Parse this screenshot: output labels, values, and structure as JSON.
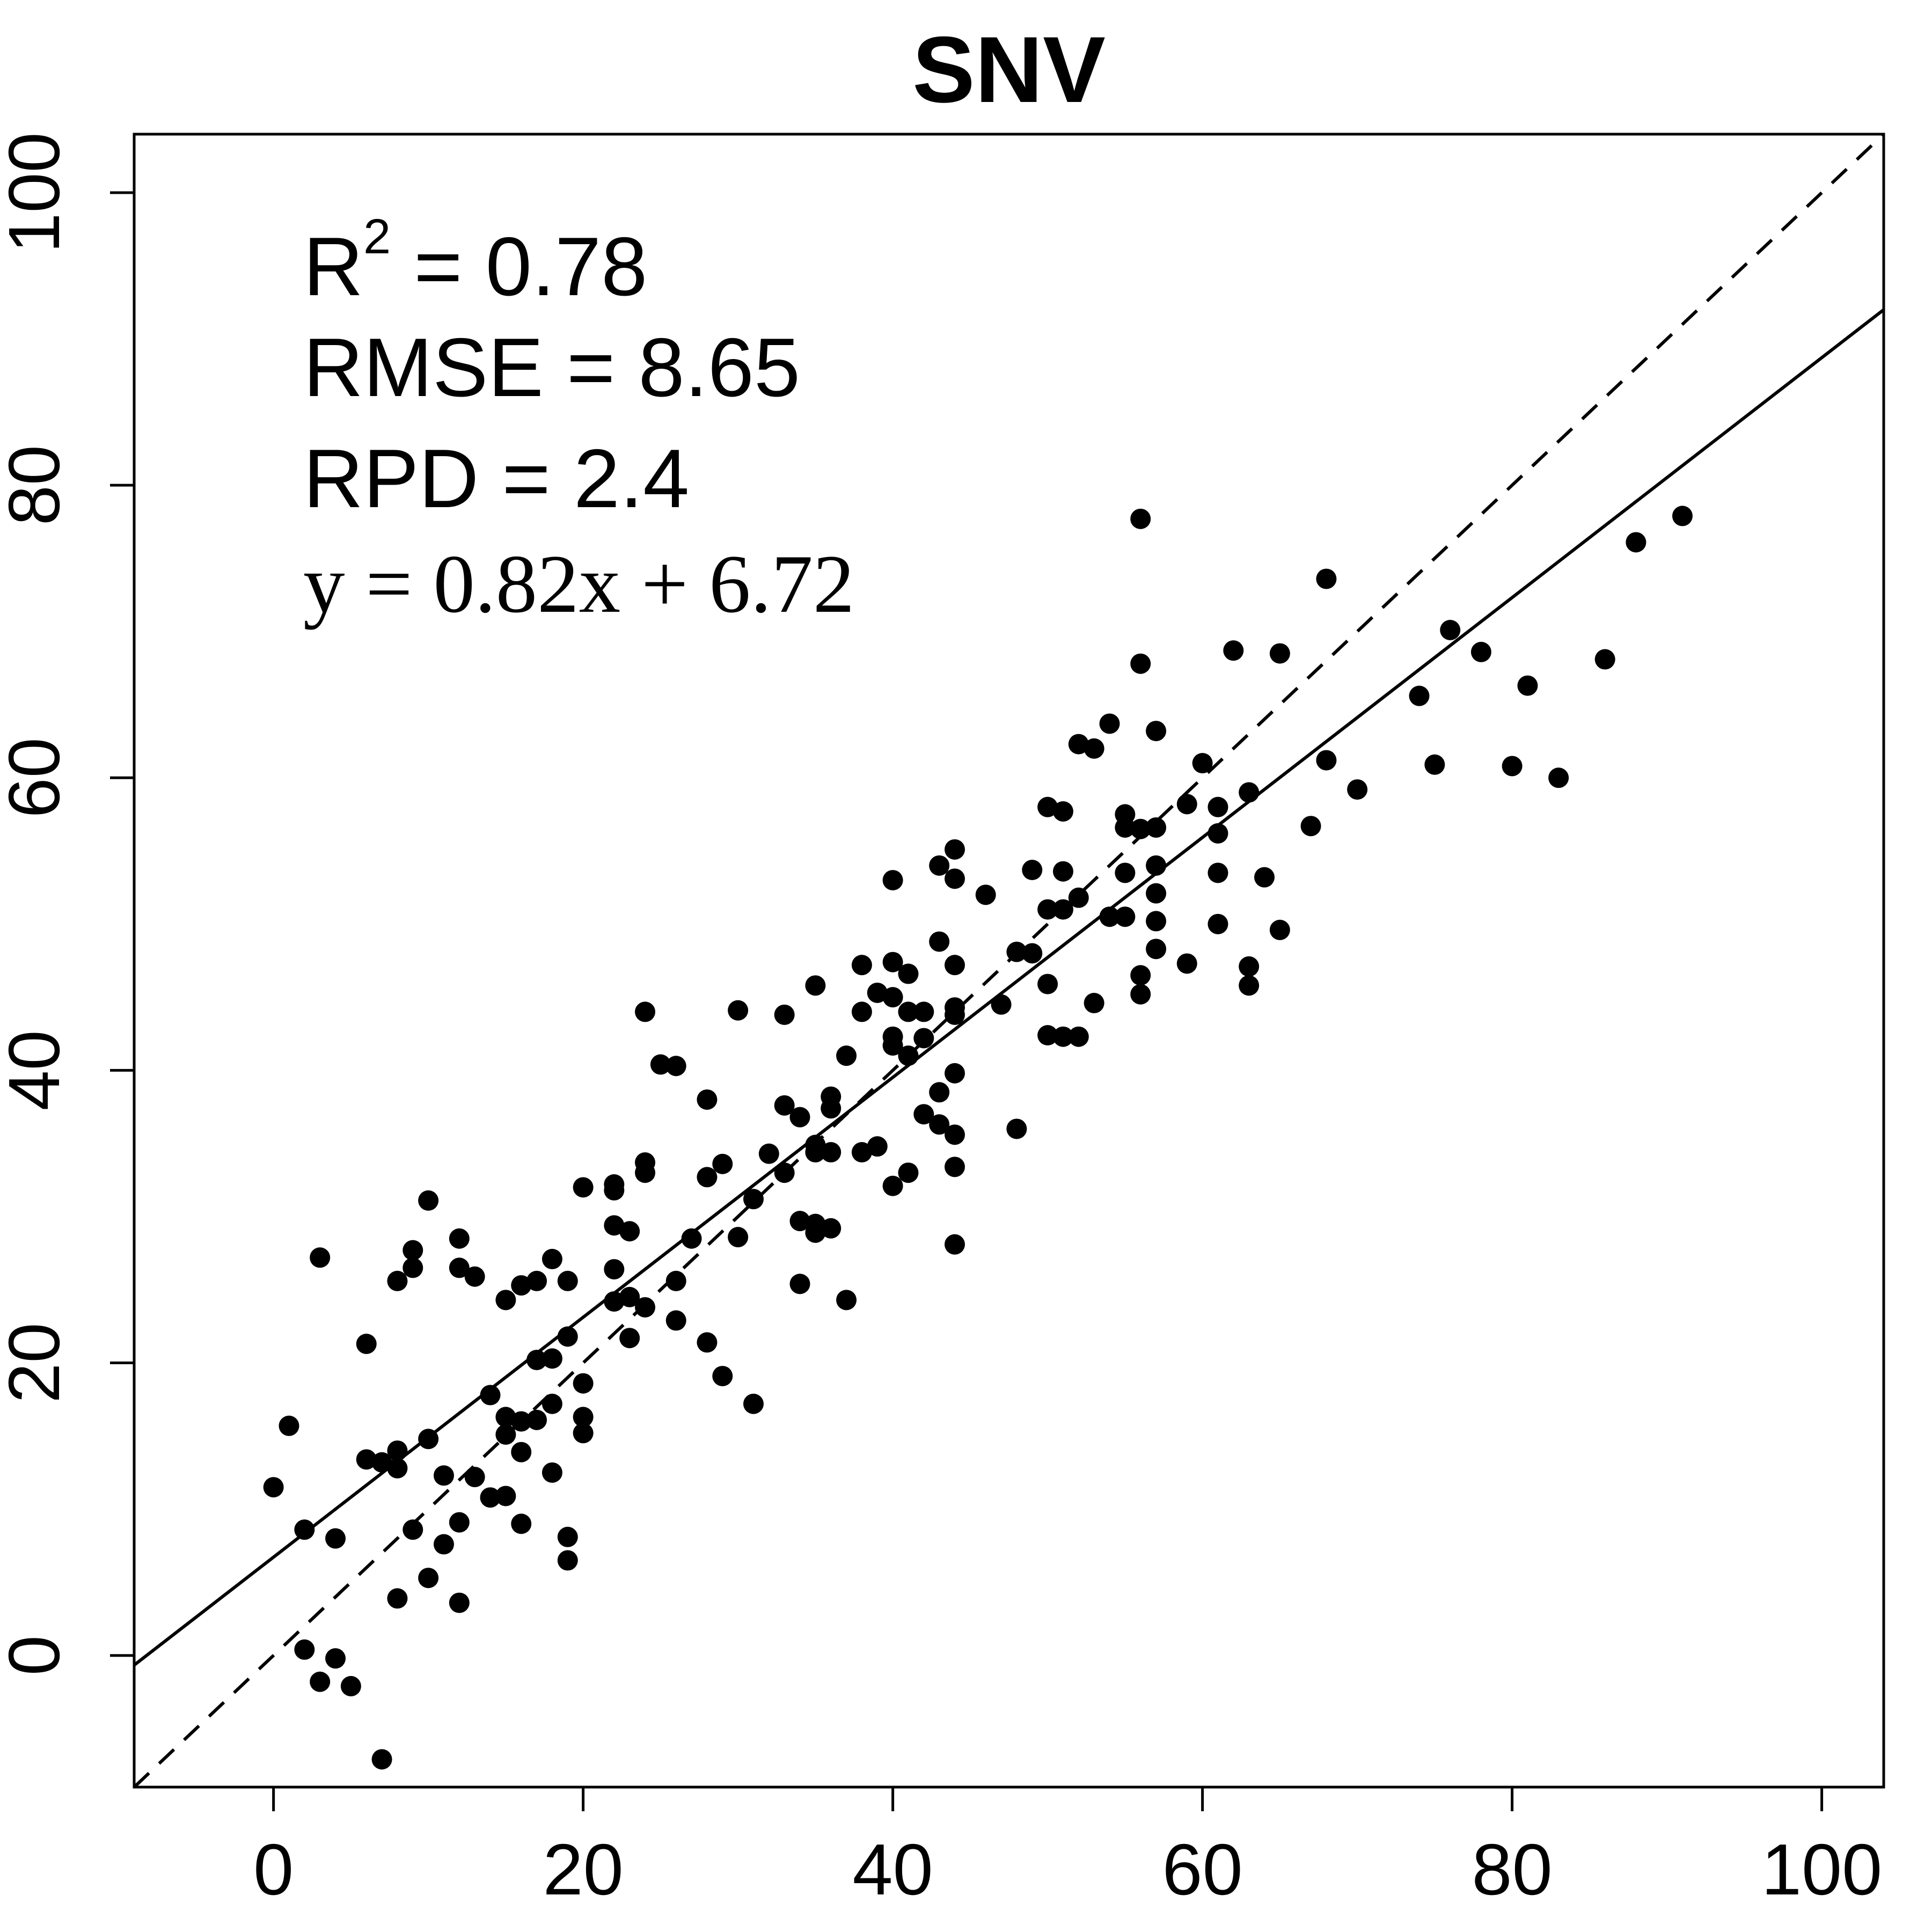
{
  "chart_data": {
    "type": "scatter",
    "title": "SNV",
    "xlabel": "",
    "ylabel": "",
    "xlim": [
      -9,
      104
    ],
    "ylim": [
      -9,
      104
    ],
    "x_ticks": [
      0,
      20,
      40,
      60,
      80,
      100
    ],
    "y_ticks": [
      0,
      20,
      40,
      60,
      80,
      100
    ],
    "x_tick_labels": [
      "0",
      "20",
      "40",
      "60",
      "80",
      "100"
    ],
    "y_tick_labels": [
      "0",
      "20",
      "40",
      "60",
      "80",
      "100"
    ],
    "grid": false,
    "annotations": {
      "r2_label": "R",
      "r2_sup": "2",
      "r2_value": " = 0.78",
      "rmse": "RMSE = 8.65",
      "rpd": "RPD = 2.4",
      "equation": "y = 0.82x + 6.72"
    },
    "fit_line": {
      "slope": 0.82,
      "intercept": 6.72,
      "style": "solid"
    },
    "identity_line": {
      "slope": 1,
      "intercept": 0,
      "style": "dashed"
    },
    "points": [
      [
        0,
        11.5
      ],
      [
        1,
        15.7
      ],
      [
        2,
        8.6
      ],
      [
        2,
        0.4
      ],
      [
        3,
        -1.8
      ],
      [
        3,
        27.2
      ],
      [
        4,
        -0.2
      ],
      [
        4,
        8.0
      ],
      [
        5,
        -2.1
      ],
      [
        6,
        21.3
      ],
      [
        6,
        13.4
      ],
      [
        7,
        13.2
      ],
      [
        7,
        -7.1
      ],
      [
        8,
        12.8
      ],
      [
        8,
        14.0
      ],
      [
        8,
        25.6
      ],
      [
        8,
        3.9
      ],
      [
        9,
        8.6
      ],
      [
        9,
        26.5
      ],
      [
        9,
        27.7
      ],
      [
        10,
        5.3
      ],
      [
        10,
        14.8
      ],
      [
        10,
        31.1
      ],
      [
        11,
        7.6
      ],
      [
        11,
        12.3
      ],
      [
        12,
        3.6
      ],
      [
        12,
        9.1
      ],
      [
        12,
        26.5
      ],
      [
        12,
        28.5
      ],
      [
        13,
        12.2
      ],
      [
        13,
        25.9
      ],
      [
        14,
        10.8
      ],
      [
        14,
        17.8
      ],
      [
        15,
        15.1
      ],
      [
        15,
        16.3
      ],
      [
        15,
        10.9
      ],
      [
        15,
        24.3
      ],
      [
        16,
        16.0
      ],
      [
        16,
        13.9
      ],
      [
        16,
        9.0
      ],
      [
        16,
        25.3
      ],
      [
        17,
        16.1
      ],
      [
        17,
        20.2
      ],
      [
        17,
        25.6
      ],
      [
        18,
        12.5
      ],
      [
        18,
        17.2
      ],
      [
        18,
        20.3
      ],
      [
        18,
        27.1
      ],
      [
        19,
        21.8
      ],
      [
        19,
        25.6
      ],
      [
        19,
        8.1
      ],
      [
        19,
        6.5
      ],
      [
        20,
        15.2
      ],
      [
        20,
        16.3
      ],
      [
        20,
        18.6
      ],
      [
        20,
        32.0
      ],
      [
        22,
        24.2
      ],
      [
        22,
        26.4
      ],
      [
        22,
        29.4
      ],
      [
        22,
        31.8
      ],
      [
        22,
        32.2
      ],
      [
        23,
        24.5
      ],
      [
        23,
        29.0
      ],
      [
        23,
        21.7
      ],
      [
        24,
        23.8
      ],
      [
        24,
        33.0
      ],
      [
        24,
        33.7
      ],
      [
        24,
        44.0
      ],
      [
        25,
        40.4
      ],
      [
        26,
        40.3
      ],
      [
        26,
        25.6
      ],
      [
        26,
        22.9
      ],
      [
        27,
        28.5
      ],
      [
        28,
        21.4
      ],
      [
        28,
        32.7
      ],
      [
        28,
        38.0
      ],
      [
        29,
        33.6
      ],
      [
        29,
        19.1
      ],
      [
        30,
        28.6
      ],
      [
        30,
        44.1
      ],
      [
        31,
        31.2
      ],
      [
        31,
        17.2
      ],
      [
        32,
        34.3
      ],
      [
        33,
        43.8
      ],
      [
        33,
        37.6
      ],
      [
        33,
        33.0
      ],
      [
        34,
        36.8
      ],
      [
        34,
        29.7
      ],
      [
        34,
        25.4
      ],
      [
        35,
        34.9
      ],
      [
        35,
        34.4
      ],
      [
        35,
        29.5
      ],
      [
        35,
        28.9
      ],
      [
        35,
        45.8
      ],
      [
        36,
        38.2
      ],
      [
        36,
        37.4
      ],
      [
        36,
        34.4
      ],
      [
        36,
        29.2
      ],
      [
        37,
        41.0
      ],
      [
        37,
        24.3
      ],
      [
        38,
        47.2
      ],
      [
        38,
        44.0
      ],
      [
        38,
        34.4
      ],
      [
        39,
        34.8
      ],
      [
        39,
        45.3
      ],
      [
        40,
        47.4
      ],
      [
        40,
        53.0
      ],
      [
        40,
        45.0
      ],
      [
        40,
        42.3
      ],
      [
        40,
        41.7
      ],
      [
        40,
        32.1
      ],
      [
        41,
        46.6
      ],
      [
        41,
        44.0
      ],
      [
        41,
        41.0
      ],
      [
        41,
        33.0
      ],
      [
        42,
        44.0
      ],
      [
        42,
        42.2
      ],
      [
        42,
        37.0
      ],
      [
        43,
        54.0
      ],
      [
        43,
        48.8
      ],
      [
        43,
        38.5
      ],
      [
        43,
        36.3
      ],
      [
        44,
        55.1
      ],
      [
        44,
        53.1
      ],
      [
        44,
        47.2
      ],
      [
        44,
        44.3
      ],
      [
        44,
        43.8
      ],
      [
        44,
        39.8
      ],
      [
        44,
        35.6
      ],
      [
        44,
        33.4
      ],
      [
        44,
        28.1
      ],
      [
        46,
        52.0
      ],
      [
        47,
        44.5
      ],
      [
        48,
        48.1
      ],
      [
        48,
        36.0
      ],
      [
        49,
        53.7
      ],
      [
        49,
        48.0
      ],
      [
        50,
        58.0
      ],
      [
        50,
        51.0
      ],
      [
        50,
        45.9
      ],
      [
        50,
        42.4
      ],
      [
        51,
        57.7
      ],
      [
        51,
        53.6
      ],
      [
        51,
        51.0
      ],
      [
        51,
        42.3
      ],
      [
        52,
        62.3
      ],
      [
        52,
        51.8
      ],
      [
        52,
        42.3
      ],
      [
        53,
        62.0
      ],
      [
        53,
        44.6
      ],
      [
        54,
        63.7
      ],
      [
        54,
        50.5
      ],
      [
        55,
        57.5
      ],
      [
        55,
        56.6
      ],
      [
        55,
        53.5
      ],
      [
        55,
        50.5
      ],
      [
        56,
        77.7
      ],
      [
        56,
        67.8
      ],
      [
        56,
        56.5
      ],
      [
        56,
        46.5
      ],
      [
        56,
        45.2
      ],
      [
        57,
        63.2
      ],
      [
        57,
        56.6
      ],
      [
        57,
        54.0
      ],
      [
        57,
        52.1
      ],
      [
        57,
        50.2
      ],
      [
        57,
        48.3
      ],
      [
        59,
        58.2
      ],
      [
        59,
        47.3
      ],
      [
        60,
        61.0
      ],
      [
        61,
        58.0
      ],
      [
        61,
        56.2
      ],
      [
        61,
        53.5
      ],
      [
        61,
        50.0
      ],
      [
        62,
        68.7
      ],
      [
        63,
        59.0
      ],
      [
        63,
        47.1
      ],
      [
        63,
        45.8
      ],
      [
        64,
        53.2
      ],
      [
        65,
        68.5
      ],
      [
        65,
        49.6
      ],
      [
        67,
        56.7
      ],
      [
        68,
        73.6
      ],
      [
        68,
        61.2
      ],
      [
        70,
        59.2
      ],
      [
        74,
        65.6
      ],
      [
        75,
        60.9
      ],
      [
        76,
        70.1
      ],
      [
        78,
        68.6
      ],
      [
        80,
        60.8
      ],
      [
        81,
        66.3
      ],
      [
        83,
        60.0
      ],
      [
        86,
        68.1
      ],
      [
        88,
        76.1
      ],
      [
        91,
        77.9
      ]
    ]
  }
}
